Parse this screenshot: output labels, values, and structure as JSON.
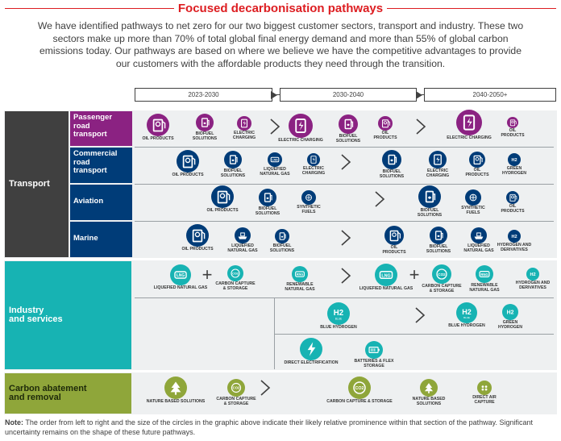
{
  "header": {
    "title": "Focused decarbonisation pathways",
    "intro": "We have identified pathways to net zero for our two biggest customer sectors, transport and industry. These two sectors make up more than 70% of total global final energy demand and more than 55% of global carbon emissions today. Our pathways are based on where we believe we have the competitive advantages to provide our customers with the affordable products they need through the transition."
  },
  "timeline": {
    "p1": "2023-2030",
    "p2": "2030-2040",
    "p3": "2040-2050+"
  },
  "sectors": {
    "transport": "Transport",
    "industry": "Industry\nand services",
    "carbon": "Carbon abatement\nand removal"
  },
  "subsectors": {
    "passenger": "Passenger\nroad\ntransport",
    "commercial": "Commercial\nroad\ntransport",
    "aviation": "Aviation",
    "marine": "Marine"
  },
  "labels": {
    "oil_products": "OIL PRODUCTS",
    "biofuel": "BIOFUEL\nSOLUTIONS",
    "electric_charging": "ELECTRIC\nCHARGING",
    "electric_charging_1": "ELECTRIC CHARGING",
    "oil_products_2": "OIL\nPRODUCTS",
    "lng": "LIQUEFIED\nNATURAL GAS",
    "green_h2": "GREEN\nHYDROGEN",
    "synthetic": "SYNTHETIC\nFUELS",
    "hydrogen_deriv": "HYDROGEN AND\nDERIVATIVES",
    "lng_1": "LIQUEFIED NATURAL GAS",
    "ccs": "CARBON CAPTURE\n& STORAGE",
    "ccs_1": "CARBON CAPTURE & STORAGE",
    "renewable_gas": "RENEWABLE\nNATURAL GAS",
    "blue_h2": "BLUE HYDROGEN",
    "direct_elec": "DIRECT ELECTRIFICATION",
    "batteries": "BATTERIES & FLEX\nSTORAGE",
    "nature": "NATURE BASED SOLUTIONS",
    "nature_2": "NATURE BASED\nSOLUTIONS",
    "dac": "DIRECT AIR\nCAPTURE",
    "lng_badge": "LNG",
    "co2_badge": "CO2",
    "rng_badge": "RNG",
    "h2_badge": "H2",
    "blue_badge": "BLUE"
  },
  "note": {
    "bold": "Note:",
    "text": " The order from left to right and the size of the circles in the graphic above indicate their likely relative prominence within that section of the pathway. Significant uncertainty remains on the shape of these future pathways."
  },
  "colors": {
    "red": "#dd1d21",
    "purple": "#8b2282",
    "navy": "#003c78",
    "teal": "#17b3b3",
    "olive": "#8fa63a",
    "dark": "#404040"
  }
}
